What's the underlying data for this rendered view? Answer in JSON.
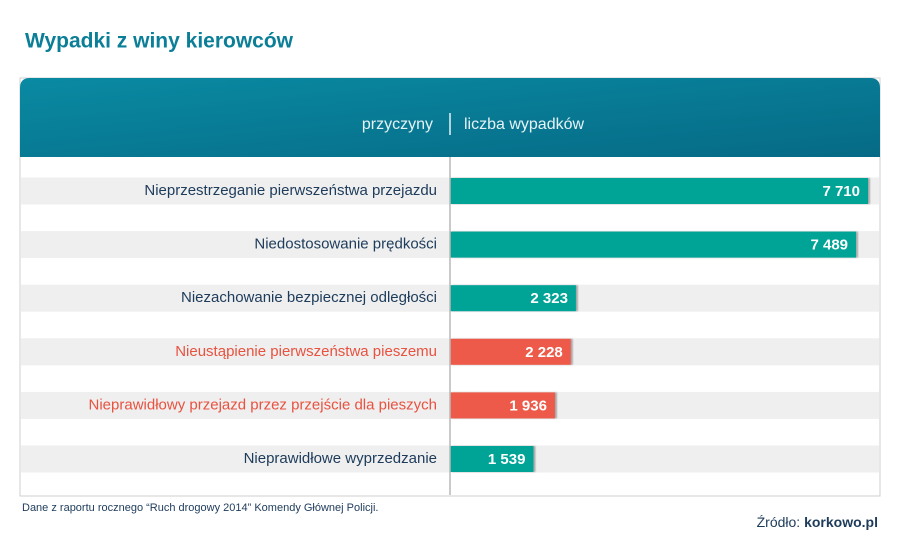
{
  "title": "Wypadki z winy kierowców",
  "header": {
    "left": "przyczyny",
    "right": "liczba wypadków"
  },
  "chart_data": {
    "type": "bar",
    "orientation": "horizontal",
    "categories": [
      "Nieprzestrzeganie pierwszeństwa przejazdu",
      "Niedostosowanie prędkości",
      "Niezachowanie bezpiecznej odległości",
      "Nieustąpienie pierwszeństwa pieszemu",
      "Nieprawidłowy przejazd przez przejście dla pieszych",
      "Nieprawidłowe wyprzedzanie"
    ],
    "values": [
      7710,
      7489,
      2323,
      2228,
      1936,
      1539
    ],
    "value_labels": [
      "7 710",
      "7 489",
      "2 323",
      "2 228",
      "1 936",
      "1 539"
    ],
    "colors": [
      "#04a497",
      "#04a497",
      "#04a497",
      "#ee5a48",
      "#ee5a48",
      "#04a497"
    ],
    "label_colors": [
      "#1d3b5a",
      "#1d3b5a",
      "#1d3b5a",
      "#e8523f",
      "#e8523f",
      "#1d3b5a"
    ]
  },
  "footer": {
    "note": "Dane z raportu rocznego “Ruch drogowy 2014”  Komendy Głównej Policji.",
    "source_label": "Źródło:",
    "source_name": "korkowo.pl"
  }
}
